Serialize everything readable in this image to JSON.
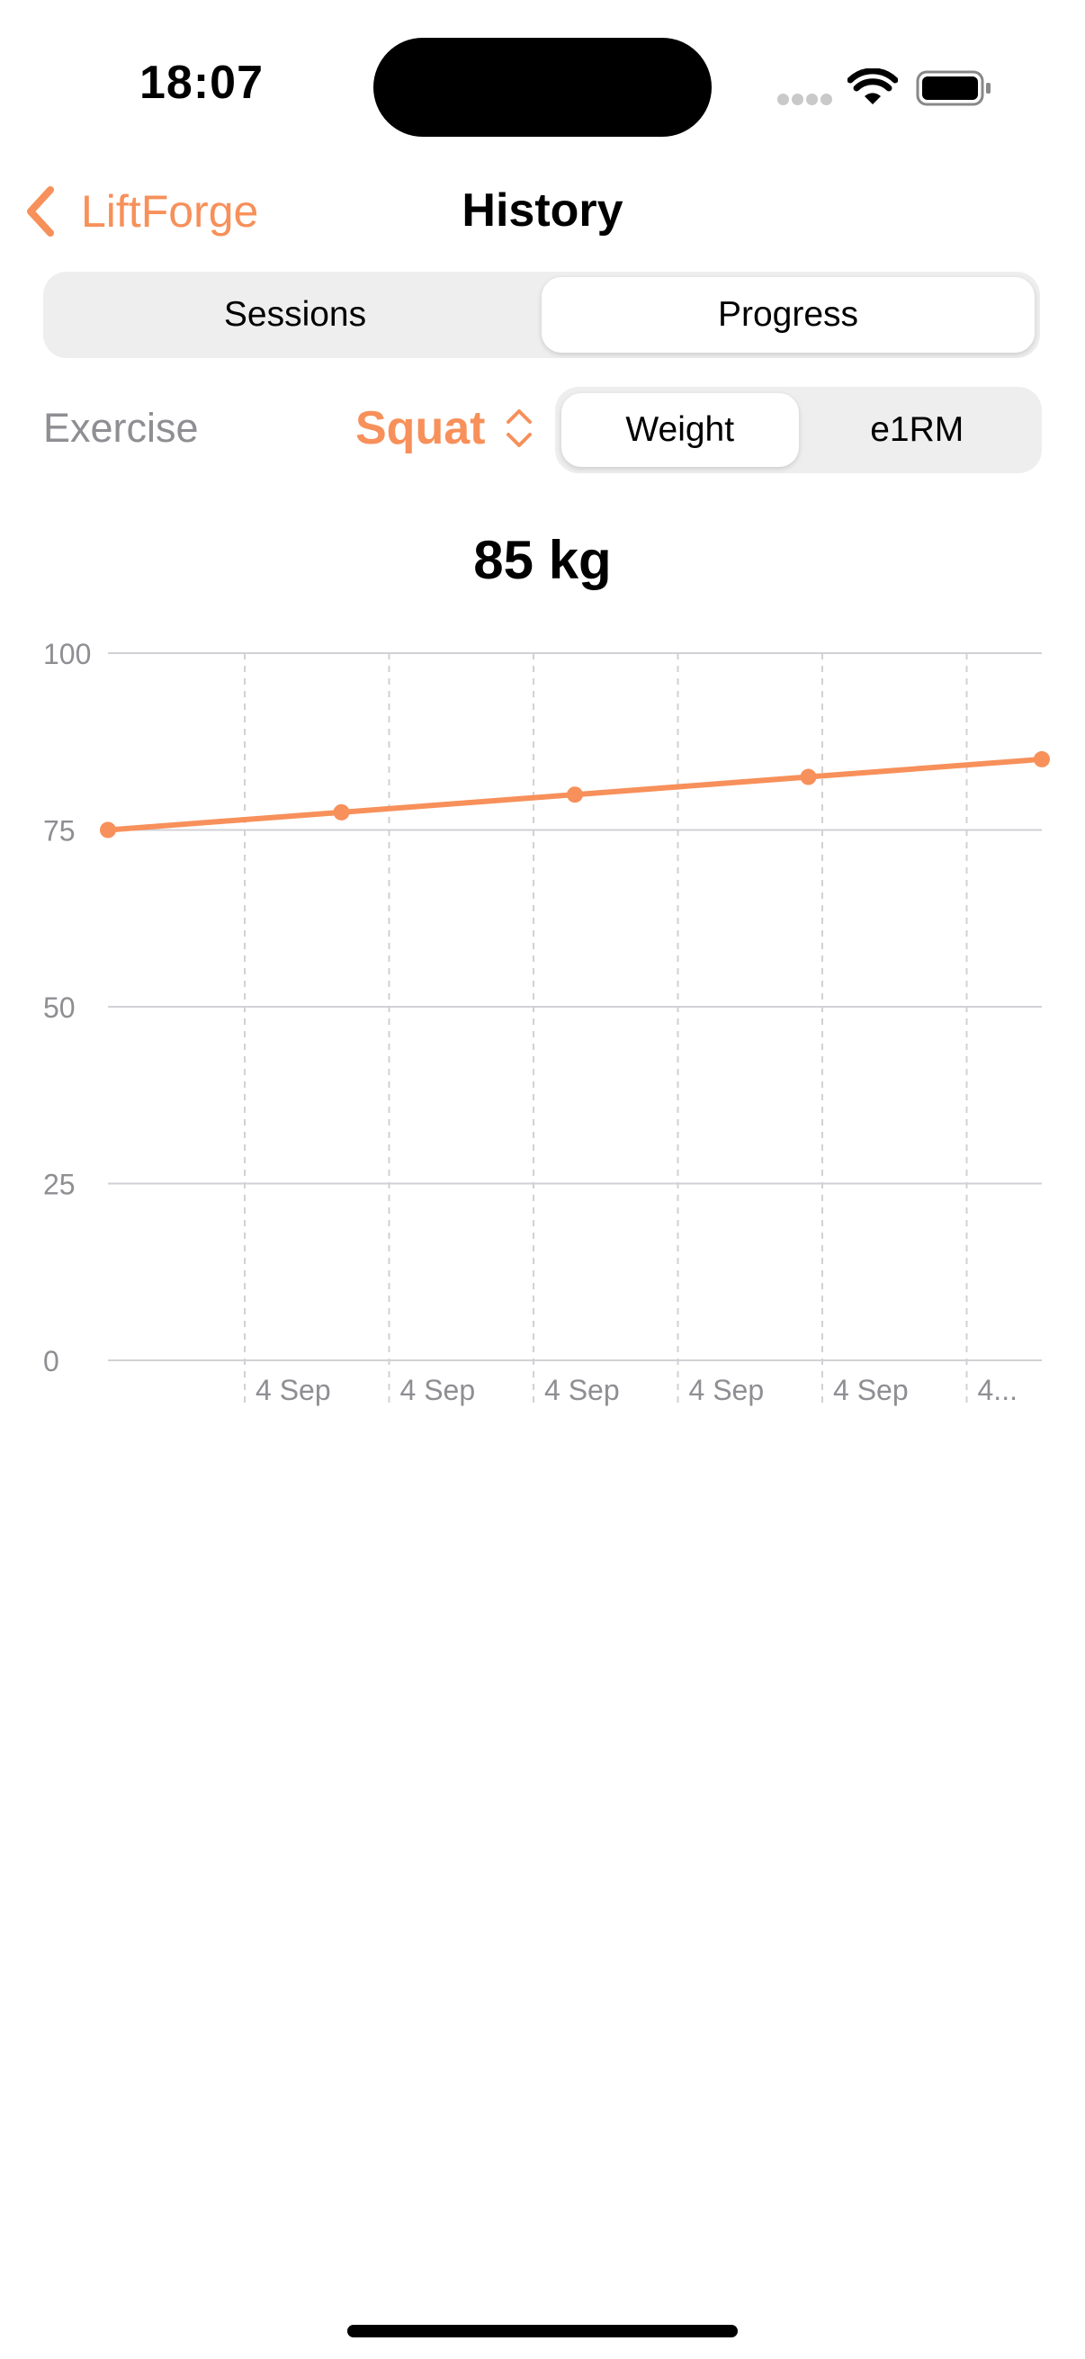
{
  "status_bar": {
    "time": "18:07",
    "icons": [
      "cellular-signal-icon",
      "wifi-icon",
      "battery-icon"
    ]
  },
  "nav": {
    "back_label": "LiftForge",
    "back_icon": "chevron-left-icon",
    "title": "History"
  },
  "segments": {
    "items": [
      "Sessions",
      "Progress"
    ],
    "selected": "Progress"
  },
  "exercise": {
    "label": "Exercise",
    "value": "Squat",
    "picker_icon": "chevron-up-down-icon"
  },
  "metric": {
    "items": [
      "Weight",
      "e1RM"
    ],
    "selected": "Weight"
  },
  "headline": "85 kg",
  "colors": {
    "accent": "#f7905a",
    "segment_bg": "#eeeeef",
    "secondary_text": "#8e8e93",
    "grid": "#d1d1d6"
  },
  "chart_data": {
    "type": "line",
    "title": "",
    "xlabel": "",
    "ylabel": "",
    "ylim": [
      0,
      100
    ],
    "y_ticks": [
      0,
      25,
      50,
      75,
      100
    ],
    "x_tick_labels": [
      "4 Sep",
      "4 Sep",
      "4 Sep",
      "4 Sep",
      "4 Sep",
      "4..."
    ],
    "series": [
      {
        "values": [
          75,
          77.5,
          80,
          82.5,
          85
        ]
      }
    ],
    "grid": true,
    "legend": "none"
  }
}
